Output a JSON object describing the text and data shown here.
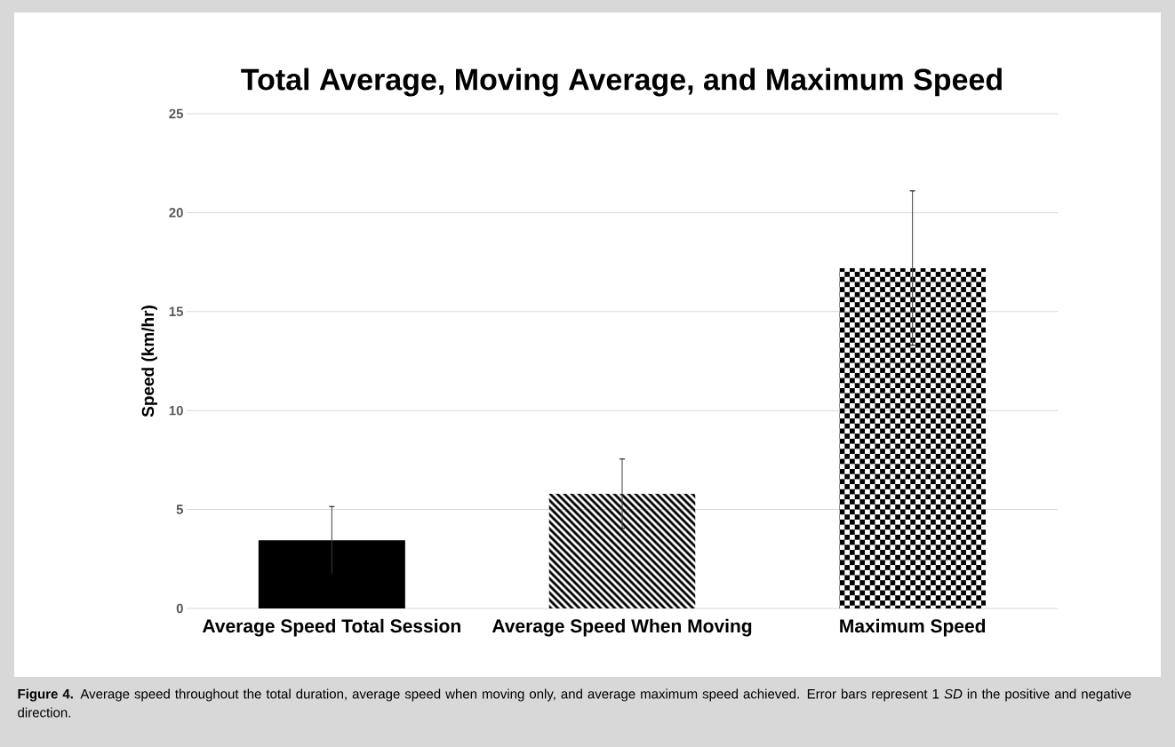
{
  "chart_data": {
    "type": "bar",
    "title": "Total Average, Moving Average, and Maximum Speed",
    "ylabel": "Speed (km/hr)",
    "categories": [
      "Average Speed Total Session",
      "Average Speed When Moving",
      "Maximum Speed"
    ],
    "values": [
      3.45,
      5.8,
      17.2
    ],
    "errors": [
      1.7,
      1.75,
      3.9
    ],
    "colors": [
      "#000000",
      "#000000",
      "#000000"
    ],
    "ylim": [
      0,
      25
    ],
    "yticks": [
      0,
      5,
      10,
      15,
      20,
      25
    ],
    "grid": "y",
    "annotations": [
      "**Figure 4.** Average speed throughout the total duration, average speed when moving only, and average maximum speed achieved. Error bars represent 1 *SD* in the positive and negative direction."
    ]
  }
}
